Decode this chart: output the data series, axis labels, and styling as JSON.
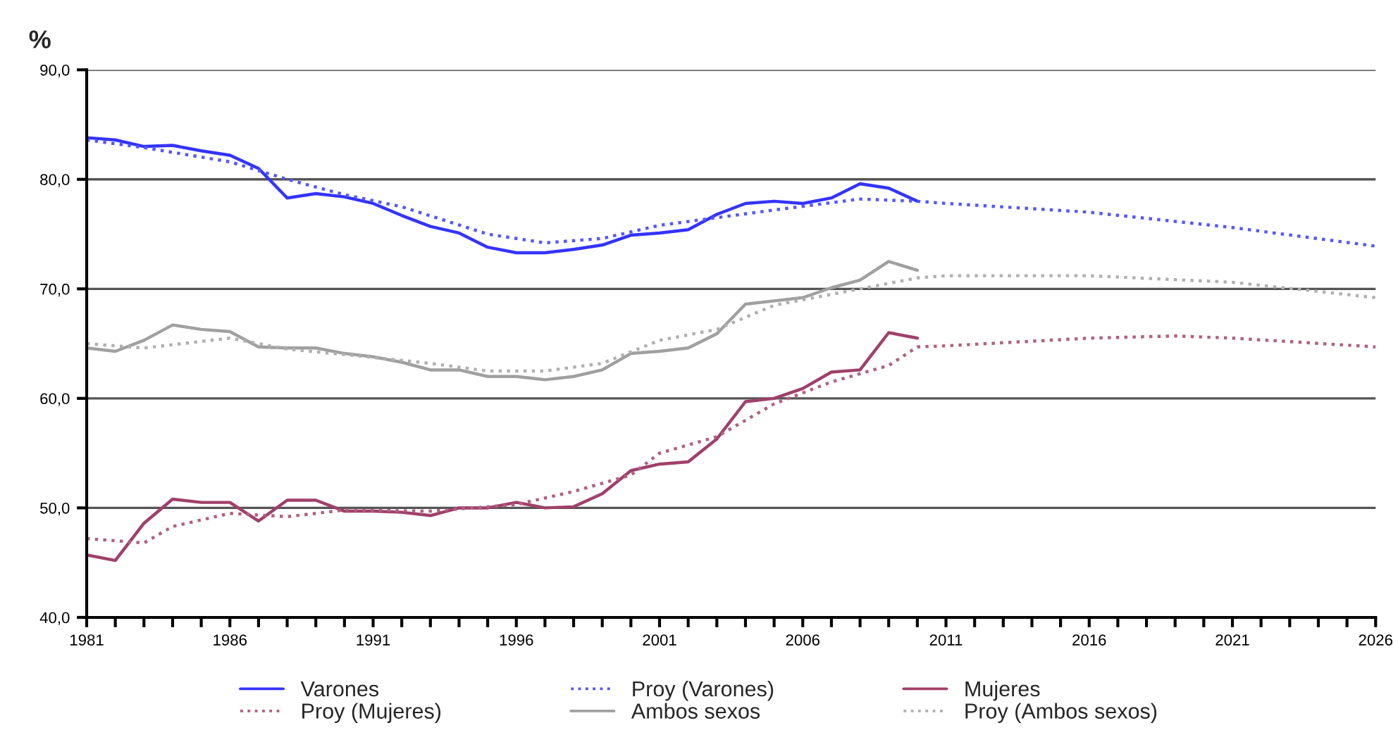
{
  "chart_data": {
    "type": "line",
    "ylabel": "%",
    "series": [
      {
        "name": "Varones",
        "color": "#3333ff",
        "line_style": "solid",
        "x": [
          1981,
          1982,
          1983,
          1984,
          1985,
          1986,
          1987,
          1988,
          1989,
          1990,
          1991,
          1992,
          1993,
          1994,
          1995,
          1996,
          1997,
          1998,
          1999,
          2000,
          2001,
          2002,
          2003,
          2004,
          2005,
          2006,
          2007,
          2008,
          2009,
          2010
        ],
        "values": [
          83.8,
          83.6,
          83.0,
          83.1,
          82.6,
          82.2,
          81.0,
          78.3,
          78.7,
          78.4,
          77.8,
          76.7,
          75.7,
          75.1,
          73.8,
          73.3,
          73.3,
          73.6,
          74.0,
          74.9,
          75.1,
          75.4,
          76.8,
          77.8,
          78.0,
          77.8,
          78.3,
          79.6,
          79.2,
          78.0
        ]
      },
      {
        "name": "Proy (Varones)",
        "color": "#5555ff",
        "line_style": "dotted",
        "x": [
          1981,
          1983,
          1986,
          1988,
          1990,
          1992,
          1995,
          1997,
          1999,
          2001,
          2003,
          2005,
          2008,
          2010,
          2011,
          2016,
          2021,
          2026
        ],
        "values": [
          83.6,
          82.9,
          81.6,
          80.0,
          78.6,
          77.5,
          75.0,
          74.2,
          74.6,
          75.8,
          76.5,
          77.2,
          78.2,
          78.0,
          77.8,
          77.0,
          75.6,
          73.9
        ]
      },
      {
        "name": "Mujeres",
        "color": "#a0406a",
        "line_style": "solid",
        "x": [
          1981,
          1982,
          1983,
          1984,
          1985,
          1986,
          1987,
          1988,
          1989,
          1990,
          1991,
          1992,
          1993,
          1994,
          1995,
          1996,
          1997,
          1998,
          1999,
          2000,
          2001,
          2002,
          2003,
          2004,
          2005,
          2006,
          2007,
          2008,
          2009,
          2010
        ],
        "values": [
          45.7,
          45.2,
          48.6,
          50.8,
          50.5,
          50.5,
          48.8,
          50.7,
          50.7,
          49.7,
          49.7,
          49.6,
          49.3,
          50.0,
          50.0,
          50.5,
          50.0,
          50.1,
          51.3,
          53.4,
          54.0,
          54.2,
          56.3,
          59.7,
          60.0,
          60.9,
          62.4,
          62.6,
          66.0,
          65.5
        ]
      },
      {
        "name": "Proy (Mujeres)",
        "color": "#b06080",
        "line_style": "dotted",
        "x": [
          1981,
          1983,
          1984,
          1986,
          1988,
          1990,
          1993,
          1996,
          1998,
          2000,
          2001,
          2003,
          2005,
          2007,
          2009,
          2010,
          2011,
          2016,
          2019,
          2021,
          2026
        ],
        "values": [
          47.2,
          46.8,
          48.3,
          49.5,
          49.2,
          49.8,
          49.7,
          50.3,
          51.5,
          53.0,
          55.0,
          56.5,
          59.5,
          61.5,
          63.0,
          64.7,
          64.8,
          65.5,
          65.7,
          65.5,
          64.7
        ]
      },
      {
        "name": "Ambos sexos",
        "color": "#a0a0a0",
        "line_style": "solid",
        "x": [
          1981,
          1982,
          1983,
          1984,
          1985,
          1986,
          1987,
          1988,
          1989,
          1990,
          1991,
          1992,
          1993,
          1994,
          1995,
          1996,
          1997,
          1998,
          1999,
          2000,
          2001,
          2002,
          2003,
          2004,
          2005,
          2006,
          2007,
          2008,
          2009,
          2010
        ],
        "values": [
          64.6,
          64.3,
          65.3,
          66.7,
          66.3,
          66.1,
          64.7,
          64.6,
          64.6,
          64.1,
          63.8,
          63.3,
          62.6,
          62.6,
          62.0,
          62.0,
          61.7,
          62.0,
          62.6,
          64.1,
          64.3,
          64.6,
          65.9,
          68.6,
          68.9,
          69.2,
          70.1,
          70.8,
          72.5,
          71.7
        ]
      },
      {
        "name": "Proy (Ambos sexos)",
        "color": "#b0b0b0",
        "line_style": "dotted",
        "x": [
          1981,
          1983,
          1986,
          1988,
          1990,
          1993,
          1995,
          1997,
          1999,
          2001,
          2003,
          2005,
          2007,
          2010,
          2011,
          2016,
          2021,
          2026
        ],
        "values": [
          65.0,
          64.6,
          65.5,
          64.5,
          64.0,
          63.2,
          62.5,
          62.5,
          63.2,
          65.3,
          66.3,
          68.5,
          69.5,
          71.0,
          71.2,
          71.2,
          70.6,
          69.2
        ]
      }
    ],
    "xlim": [
      1981,
      2026
    ],
    "xticks": [
      {
        "value": 1981,
        "label": "1981"
      },
      {
        "value": 1982,
        "label": null
      },
      {
        "value": 1983,
        "label": null
      },
      {
        "value": 1984,
        "label": null
      },
      {
        "value": 1985,
        "label": null
      },
      {
        "value": 1986,
        "label": "1986"
      },
      {
        "value": 1987,
        "label": null
      },
      {
        "value": 1988,
        "label": null
      },
      {
        "value": 1989,
        "label": null
      },
      {
        "value": 1990,
        "label": null
      },
      {
        "value": 1991,
        "label": "1991"
      },
      {
        "value": 1992,
        "label": null
      },
      {
        "value": 1993,
        "label": null
      },
      {
        "value": 1994,
        "label": null
      },
      {
        "value": 1995,
        "label": null
      },
      {
        "value": 1996,
        "label": "1996"
      },
      {
        "value": 1997,
        "label": null
      },
      {
        "value": 1998,
        "label": null
      },
      {
        "value": 1999,
        "label": null
      },
      {
        "value": 2000,
        "label": null
      },
      {
        "value": 2001,
        "label": "2001"
      },
      {
        "value": 2002,
        "label": null
      },
      {
        "value": 2003,
        "label": null
      },
      {
        "value": 2004,
        "label": null
      },
      {
        "value": 2005,
        "label": null
      },
      {
        "value": 2006,
        "label": "2006"
      },
      {
        "value": 2007,
        "label": null
      },
      {
        "value": 2008,
        "label": null
      },
      {
        "value": 2009,
        "label": null
      },
      {
        "value": 2010,
        "label": null
      },
      {
        "value": 2011,
        "label": "2011"
      },
      {
        "value": 2012,
        "label": null
      },
      {
        "value": 2013,
        "label": null
      },
      {
        "value": 2014,
        "label": null
      },
      {
        "value": 2015,
        "label": null
      },
      {
        "value": 2016,
        "label": "2016"
      },
      {
        "value": 2017,
        "label": null
      },
      {
        "value": 2018,
        "label": null
      },
      {
        "value": 2019,
        "label": null
      },
      {
        "value": 2020,
        "label": null
      },
      {
        "value": 2021,
        "label": "2021"
      },
      {
        "value": 2022,
        "label": null
      },
      {
        "value": 2023,
        "label": null
      },
      {
        "value": 2024,
        "label": null
      },
      {
        "value": 2025,
        "label": null
      },
      {
        "value": 2026,
        "label": "2026"
      }
    ],
    "ylim": [
      40,
      90
    ],
    "yticks": [
      {
        "value": 40,
        "label": "40,0"
      },
      {
        "value": 50,
        "label": "50,0"
      },
      {
        "value": 60,
        "label": "60,0"
      },
      {
        "value": 70,
        "label": "70,0"
      },
      {
        "value": 80,
        "label": "80,0"
      },
      {
        "value": 90,
        "label": "90,0"
      }
    ],
    "grid": "y",
    "legend": "bottom",
    "marker": "none"
  }
}
